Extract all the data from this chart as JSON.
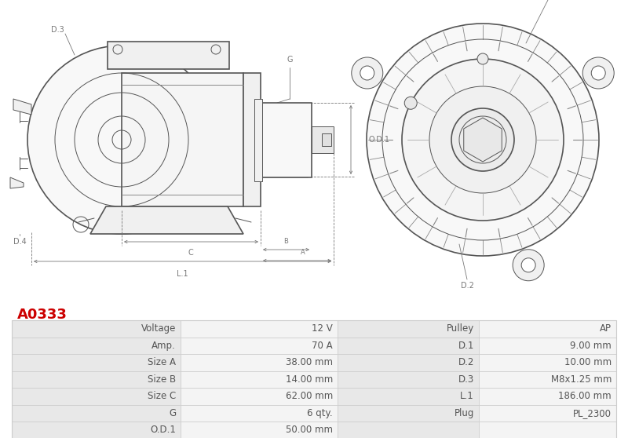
{
  "title_code": "A0333",
  "title_color": "#cc0000",
  "bg_color": "#ffffff",
  "table_rows": [
    [
      "Voltage",
      "12 V",
      "Pulley",
      "AP"
    ],
    [
      "Amp.",
      "70 A",
      "D.1",
      "9.00 mm"
    ],
    [
      "Size A",
      "38.00 mm",
      "D.2",
      "10.00 mm"
    ],
    [
      "Size B",
      "14.00 mm",
      "D.3",
      "M8x1.25 mm"
    ],
    [
      "Size C",
      "62.00 mm",
      "L.1",
      "186.00 mm"
    ],
    [
      "G",
      "6 qty.",
      "Plug",
      "PL_2300"
    ],
    [
      "O.D.1",
      "50.00 mm",
      "",
      ""
    ]
  ],
  "border_color": "#cccccc",
  "text_color": "#555555",
  "font_size": 8.5,
  "col_label_bg": "#e8e8e8",
  "col_value_bg": "#f4f4f4",
  "line_color": "#555555",
  "dim_color": "#777777",
  "lw_main": 1.2,
  "lw_thin": 0.7,
  "lw_dim": 0.6
}
